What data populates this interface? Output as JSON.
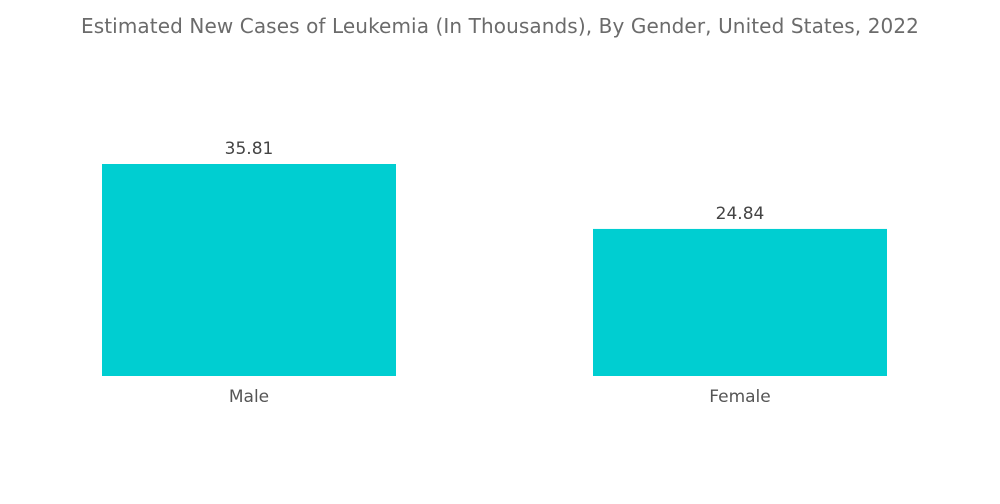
{
  "chart_data": {
    "type": "bar",
    "title": "Estimated New Cases of Leukemia (In Thousands), By Gender, United States, 2022",
    "categories": [
      "Male",
      "Female"
    ],
    "values": [
      35.81,
      24.84
    ],
    "value_labels": [
      "35.81",
      "24.84"
    ],
    "xlabel": "",
    "ylabel": "",
    "ylim": [
      0,
      36
    ],
    "grid": false,
    "legend": "none",
    "bar_color": "#00CED1"
  }
}
